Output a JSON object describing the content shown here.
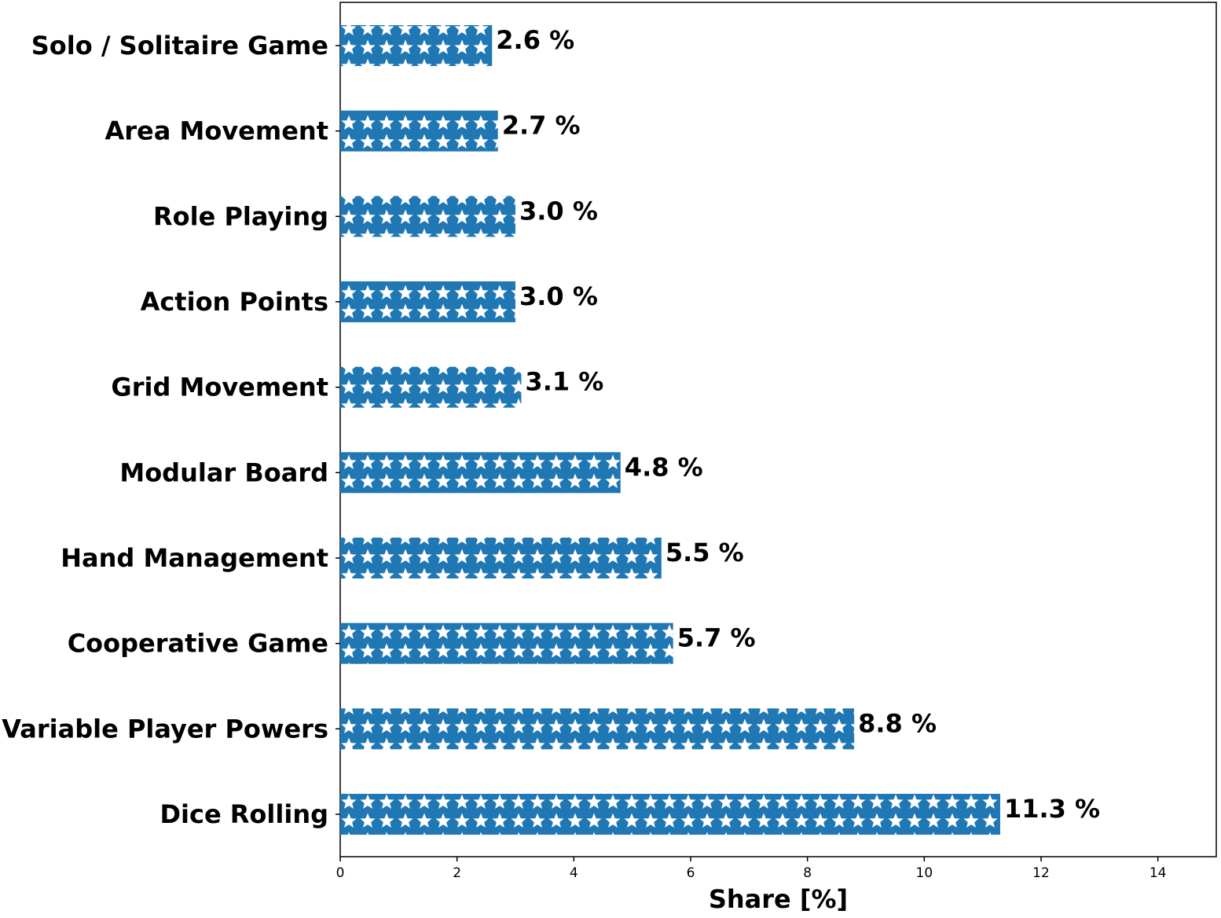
{
  "chart_data": {
    "type": "bar",
    "orientation": "horizontal",
    "categories": [
      "Solo / Solitaire Game",
      "Area Movement",
      "Role Playing",
      "Action Points",
      "Grid Movement",
      "Modular Board",
      "Hand Management",
      "Cooperative Game",
      "Variable Player Powers",
      "Dice Rolling"
    ],
    "values": [
      2.6,
      2.7,
      3.0,
      3.0,
      3.1,
      4.8,
      5.5,
      5.7,
      8.8,
      11.3
    ],
    "value_labels": [
      "2.6 %",
      "2.7 %",
      "3.0 %",
      "3.0 %",
      "3.1 %",
      "4.8 %",
      "5.5 %",
      "5.7 %",
      "8.8 %",
      "11.3 %"
    ],
    "xlabel": "Share [%]",
    "ylabel": "",
    "xlim": [
      0,
      15
    ],
    "xticks": [
      0,
      2,
      4,
      6,
      8,
      10,
      12,
      14
    ],
    "grid": false,
    "legend": "none",
    "bar_color": "#1f77b4",
    "hatch": "white stars"
  }
}
